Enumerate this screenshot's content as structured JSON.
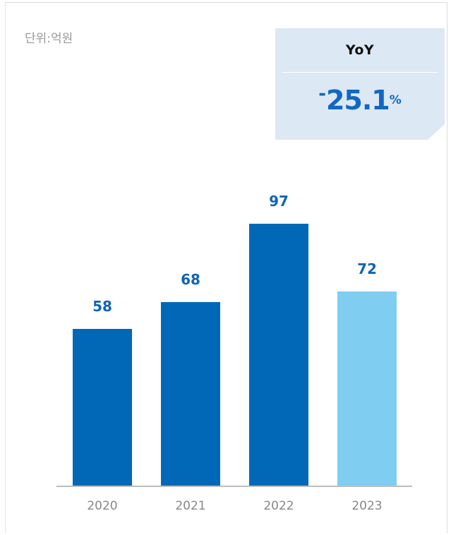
{
  "chart_data": {
    "type": "bar",
    "categories": [
      "2020",
      "2021",
      "2022",
      "2023"
    ],
    "values": [
      58,
      68,
      97,
      72
    ],
    "unit_label": "단위:억원",
    "ylim": [
      0,
      110
    ],
    "colors": [
      "#0068b7",
      "#0068b7",
      "#0068b7",
      "#7fcdf1"
    ],
    "grid": false,
    "legend": "none"
  },
  "yoy": {
    "title": "YoY",
    "sign": "-",
    "value": "25.1",
    "percent": "%"
  }
}
